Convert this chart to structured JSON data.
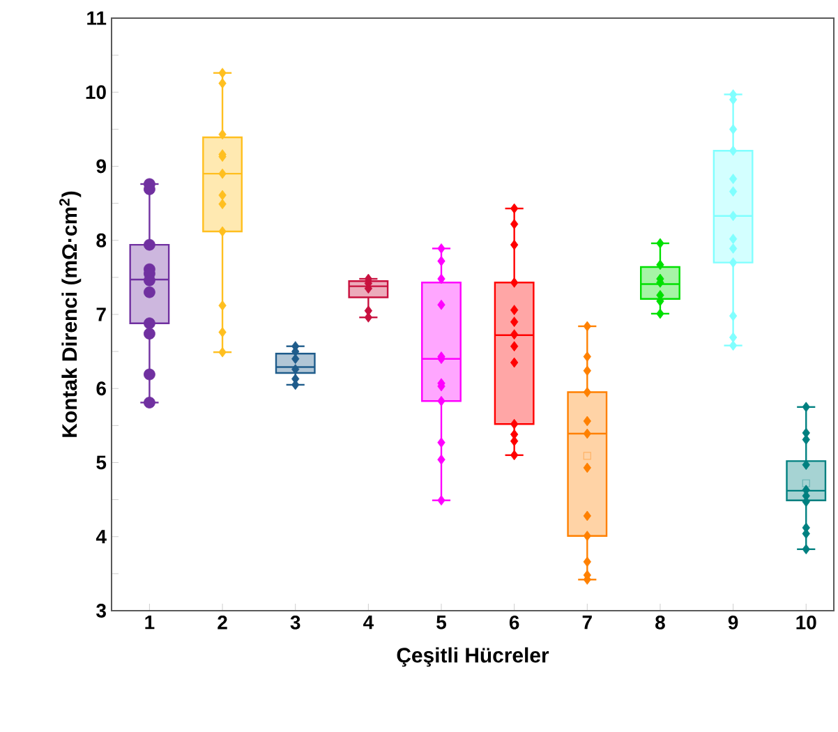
{
  "chart_data": {
    "type": "box",
    "xlabel": "Çeşitli Hücreler",
    "ylabel": "Kontak Direnci (mΩ·cm$^{2}$)",
    "categories": [
      "1",
      "2",
      "3",
      "4",
      "5",
      "6",
      "7",
      "8",
      "9",
      "10"
    ],
    "colors": [
      "#7030a0",
      "#ffbf1f",
      "#1f5c8b",
      "#c8103e",
      "#ff00ff",
      "#ff0000",
      "#ff8000",
      "#00e000",
      "#80ffff",
      "#008080"
    ],
    "boxes": [
      {
        "low": 5.81,
        "q1": 6.88,
        "median": 7.47,
        "q3": 7.94,
        "high": 8.76
      },
      {
        "low": 6.49,
        "q1": 8.12,
        "median": 8.9,
        "q3": 9.39,
        "high": 10.26
      },
      {
        "low": 6.05,
        "q1": 6.21,
        "median": 6.29,
        "q3": 6.47,
        "high": 6.57
      },
      {
        "low": 6.96,
        "q1": 7.23,
        "median": 7.38,
        "q3": 7.45,
        "high": 7.48
      },
      {
        "low": 4.49,
        "q1": 5.83,
        "median": 6.4,
        "q3": 7.43,
        "high": 7.89
      },
      {
        "low": 5.1,
        "q1": 5.52,
        "median": 6.72,
        "q3": 7.43,
        "high": 8.43
      },
      {
        "low": 3.42,
        "q1": 4.01,
        "median": 5.39,
        "q3": 5.95,
        "high": 6.84,
        "mean": 5.09
      },
      {
        "low": 7.01,
        "q1": 7.21,
        "median": 7.41,
        "q3": 7.64,
        "high": 7.96
      },
      {
        "low": 6.58,
        "q1": 7.7,
        "median": 8.33,
        "q3": 9.21,
        "high": 9.97
      },
      {
        "low": 3.83,
        "q1": 4.49,
        "median": 4.62,
        "q3": 5.02,
        "high": 5.75,
        "mean": 4.72
      }
    ],
    "series": [
      {
        "type": "scatter",
        "color": "#7030a0",
        "marker": "circle",
        "x": [
          "1",
          "1",
          "1",
          "1",
          "1",
          "1",
          "1",
          "1",
          "1",
          "1",
          "1"
        ],
        "values": [
          8.76,
          8.69,
          7.94,
          7.61,
          7.55,
          7.46,
          7.3,
          6.88,
          6.74,
          6.19,
          5.81
        ]
      },
      {
        "type": "scatter",
        "color": "#ffbf1f",
        "marker": "diamond",
        "x": [
          "2",
          "2",
          "2",
          "2",
          "2",
          "2",
          "2",
          "2",
          "2",
          "2",
          "2",
          "2"
        ],
        "values": [
          10.26,
          10.12,
          9.43,
          9.16,
          9.13,
          8.9,
          8.61,
          8.49,
          8.12,
          7.12,
          6.76,
          6.49
        ]
      },
      {
        "type": "scatter",
        "color": "#1f5c8b",
        "marker": "diamond",
        "x": [
          "3",
          "3",
          "3",
          "3",
          "3",
          "3"
        ],
        "values": [
          6.57,
          6.5,
          6.4,
          6.26,
          6.13,
          6.05
        ]
      },
      {
        "type": "scatter",
        "color": "#c8103e",
        "marker": "diamond",
        "x": [
          "4",
          "4",
          "4",
          "4",
          "4"
        ],
        "values": [
          7.48,
          7.42,
          7.35,
          7.05,
          6.96
        ]
      },
      {
        "type": "scatter",
        "color": "#ff00ff",
        "marker": "diamond",
        "x": [
          "5",
          "5",
          "5",
          "5",
          "5",
          "5",
          "5",
          "5",
          "5",
          "5",
          "5",
          "5"
        ],
        "values": [
          7.89,
          7.72,
          7.48,
          7.13,
          6.43,
          6.4,
          6.07,
          6.03,
          5.83,
          5.27,
          5.04,
          4.49
        ]
      },
      {
        "type": "scatter",
        "color": "#ff0000",
        "marker": "diamond",
        "x": [
          "6",
          "6",
          "6",
          "6",
          "6",
          "6",
          "6",
          "6",
          "6",
          "6",
          "6",
          "6",
          "6"
        ],
        "values": [
          8.43,
          8.22,
          7.94,
          7.43,
          7.06,
          6.9,
          6.73,
          6.57,
          6.35,
          5.52,
          5.38,
          5.29,
          5.1
        ]
      },
      {
        "type": "scatter",
        "color": "#ff8000",
        "marker": "diamond",
        "x": [
          "7",
          "7",
          "7",
          "7",
          "7",
          "7",
          "7",
          "7",
          "7",
          "7",
          "7",
          "7"
        ],
        "values": [
          6.84,
          6.43,
          6.24,
          5.95,
          5.56,
          5.39,
          4.93,
          4.28,
          4.01,
          3.66,
          3.48,
          3.42
        ]
      },
      {
        "type": "scatter",
        "color": "#00e000",
        "marker": "diamond",
        "x": [
          "8",
          "8",
          "8",
          "8",
          "8",
          "8",
          "8"
        ],
        "values": [
          7.96,
          7.67,
          7.48,
          7.43,
          7.26,
          7.18,
          7.01
        ]
      },
      {
        "type": "scatter",
        "color": "#80ffff",
        "marker": "diamond",
        "x": [
          "9",
          "9",
          "9",
          "9",
          "9",
          "9",
          "9",
          "9",
          "9",
          "9",
          "9",
          "9",
          "9"
        ],
        "values": [
          9.97,
          9.9,
          9.5,
          9.21,
          8.83,
          8.66,
          8.33,
          8.02,
          7.89,
          7.7,
          6.98,
          6.69,
          6.58
        ]
      },
      {
        "type": "scatter",
        "color": "#008080",
        "marker": "diamond",
        "x": [
          "10",
          "10",
          "10",
          "10",
          "10",
          "10",
          "10",
          "10",
          "10",
          "10"
        ],
        "values": [
          5.75,
          5.4,
          5.31,
          4.97,
          4.63,
          4.55,
          4.47,
          4.12,
          4.04,
          3.83
        ]
      }
    ],
    "ylim": [
      3,
      11
    ],
    "yticks": [
      3,
      {
        "value": 3.5,
        "label": null
      },
      4,
      {
        "value": 4.5,
        "label": null
      },
      5,
      {
        "value": 5.5,
        "label": null
      },
      6,
      {
        "value": 6.5,
        "label": null
      },
      7,
      {
        "value": 7.5,
        "label": null
      },
      8,
      {
        "value": 8.5,
        "label": null
      },
      9,
      {
        "value": 9.5,
        "label": null
      },
      10,
      {
        "value": 10.5,
        "label": null
      },
      11
    ]
  }
}
